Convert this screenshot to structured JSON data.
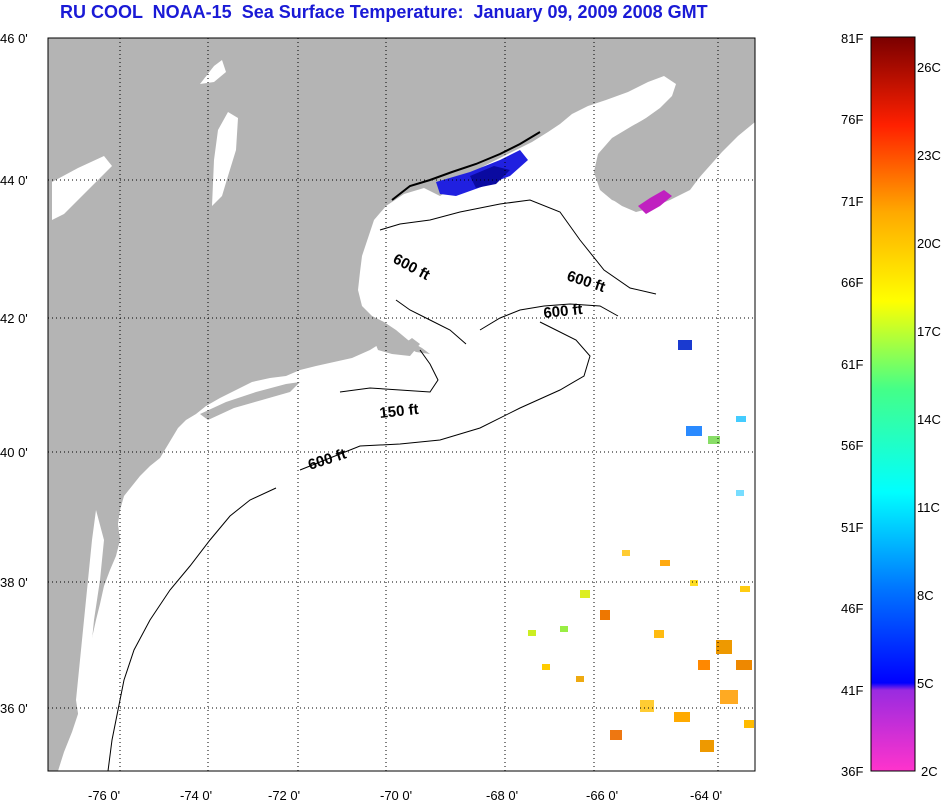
{
  "title": "RU COOL  NOAA-15  Sea Surface Temperature:  January 09, 2009 2008 GMT",
  "latitude_labels": [
    "46 0'",
    "44 0'",
    "42 0'",
    "40 0'",
    "38 0'",
    "36 0'"
  ],
  "longitude_labels": [
    "-76 0'",
    "-74 0'",
    "-72 0'",
    "-70 0'",
    "-68 0'",
    "-66 0'",
    "-64 0'"
  ],
  "contour_labels": [
    "600 ft",
    "600 ft",
    "600 ft",
    "150 ft",
    "600 ft"
  ],
  "colorbar": {
    "fahrenheit_labels": [
      "81F",
      "76F",
      "71F",
      "66F",
      "61F",
      "56F",
      "51F",
      "46F",
      "41F",
      "36F"
    ],
    "celsius_labels": [
      "26C",
      "23C",
      "20C",
      "17C",
      "14C",
      "11C",
      "8C",
      "5C",
      "2C"
    ]
  },
  "colors": {
    "title": "#1a1ad6",
    "land": "#b4b4b4",
    "ocean": "#ffffff"
  }
}
